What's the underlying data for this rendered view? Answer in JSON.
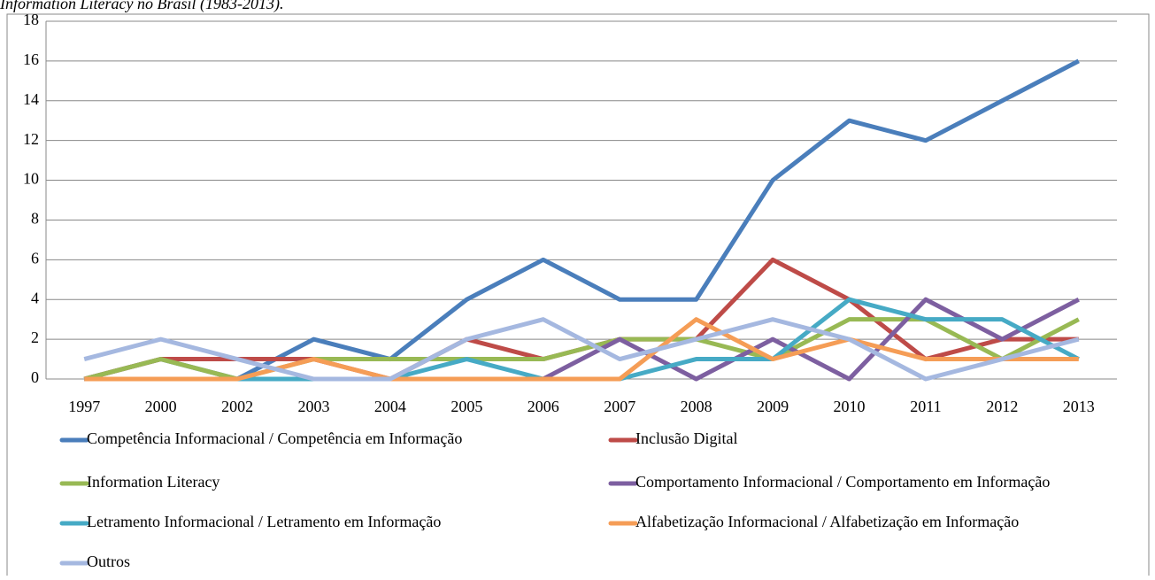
{
  "chart_data": {
    "type": "line",
    "title": "Information Literacy no Brasil (1983-2013).",
    "categories": [
      "1997",
      "2000",
      "2002",
      "2003",
      "2004",
      "2005",
      "2006",
      "2007",
      "2008",
      "2009",
      "2010",
      "2011",
      "2012",
      "2013"
    ],
    "series": [
      {
        "name": "Competência Informacional / Competência em Informação",
        "color": "#4a7ebb",
        "values": [
          0,
          1,
          0,
          2,
          1,
          4,
          6,
          4,
          4,
          10,
          13,
          12,
          14,
          16
        ]
      },
      {
        "name": "Inclusão Digital",
        "color": "#be4b48",
        "values": [
          0,
          1,
          1,
          1,
          0,
          2,
          1,
          2,
          2,
          6,
          4,
          1,
          2,
          2
        ]
      },
      {
        "name": "Information Literacy",
        "color": "#98b954",
        "values": [
          0,
          1,
          0,
          1,
          1,
          1,
          1,
          2,
          2,
          1,
          3,
          3,
          1,
          3
        ]
      },
      {
        "name": "Comportamento Informacional / Comportamento em Informação",
        "color": "#7d5fa0",
        "values": [
          0,
          0,
          0,
          0,
          0,
          0,
          0,
          2,
          0,
          2,
          0,
          4,
          2,
          4
        ]
      },
      {
        "name": "Letramento Informacional / Letramento em Informação",
        "color": "#46aac5",
        "values": [
          0,
          0,
          0,
          0,
          0,
          1,
          0,
          0,
          1,
          1,
          4,
          3,
          3,
          1
        ]
      },
      {
        "name": "Alfabetização Informacional / Alfabetização em Informação",
        "color": "#f59d56",
        "values": [
          0,
          0,
          0,
          1,
          0,
          0,
          0,
          0,
          3,
          1,
          2,
          1,
          1,
          1
        ]
      },
      {
        "name": "Outros",
        "color": "#a5b8e0",
        "values": [
          1,
          2,
          1,
          0,
          0,
          2,
          3,
          1,
          2,
          3,
          2,
          0,
          1,
          2
        ]
      }
    ],
    "ylim": [
      0,
      18
    ],
    "yticks": [
      0,
      2,
      4,
      6,
      8,
      10,
      12,
      14,
      16,
      18
    ],
    "grid": true
  }
}
